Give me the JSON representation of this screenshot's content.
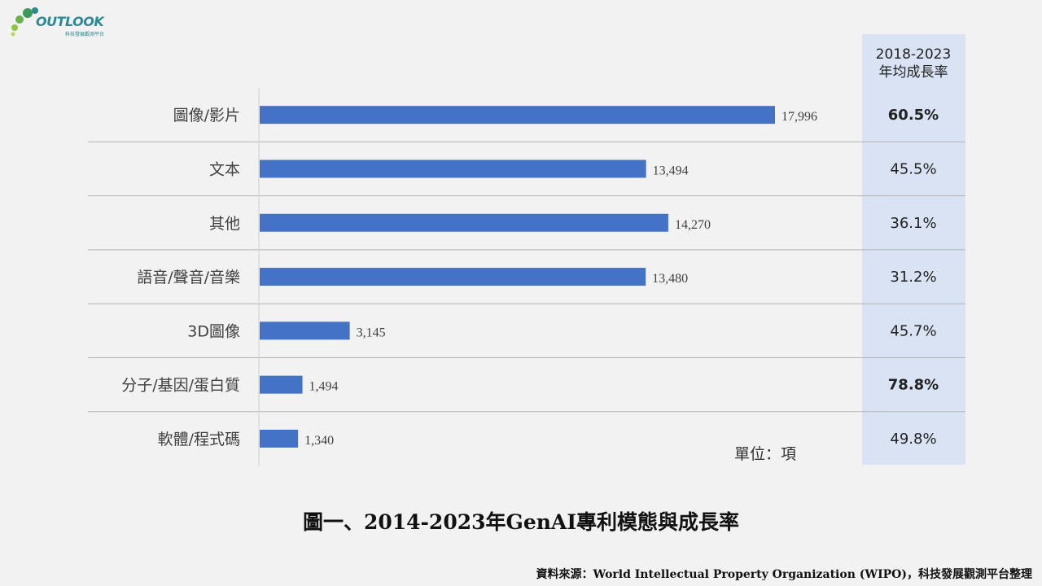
{
  "logo": {
    "name": "OUTLOOK",
    "subtitle": "科技發展觀測平台"
  },
  "colors": {
    "bar": "#4472c4",
    "rate_column_bg": "#dae3f3",
    "divider": "#b3b3b3"
  },
  "chart_data": {
    "type": "bar",
    "orientation": "horizontal",
    "title": "圖一、2014-2023年GenAI專利模態與成長率",
    "unit_label": "單位：項",
    "categories": [
      "圖像/影片",
      "文本",
      "其他",
      "語音/聲音/音樂",
      "3D圖像",
      "分子/基因/蛋白質",
      "軟體/程式碼"
    ],
    "values": [
      17996,
      13494,
      14270,
      13480,
      3145,
      1494,
      1340
    ],
    "value_labels": [
      "17,996",
      "13,494",
      "14,270",
      "13,480",
      "3,145",
      "1,494",
      "1,340"
    ],
    "xlim": [
      0,
      18000
    ],
    "grid": false,
    "rate_column": {
      "header_line1": "2018-2023",
      "header_line2": "年均成長率",
      "values": [
        "60.5%",
        "45.5%",
        "36.1%",
        "31.2%",
        "45.7%",
        "78.8%",
        "49.8%"
      ],
      "emphasized": [
        true,
        false,
        false,
        false,
        false,
        true,
        false
      ]
    }
  },
  "source_text": "資料來源：World Intellectual Property Organization (WIPO)，科技發展觀測平台整理"
}
